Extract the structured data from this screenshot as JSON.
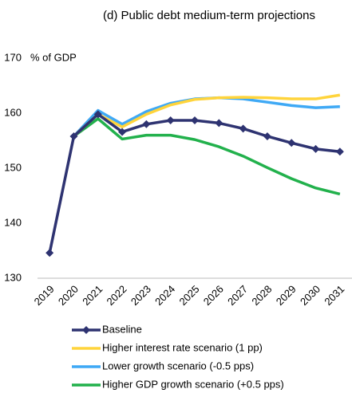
{
  "chart_data": {
    "type": "line",
    "title": "(d) Public debt medium-term projections",
    "y_label": "% of GDP",
    "categories": [
      "2019",
      "2020",
      "2021",
      "2022",
      "2023",
      "2024",
      "2025",
      "2026",
      "2027",
      "2028",
      "2029",
      "2030",
      "2031"
    ],
    "series": [
      {
        "name": "Baseline",
        "color": "#2e3371",
        "marker": "diamond",
        "values": [
          134.6,
          155.8,
          159.8,
          156.6,
          158.0,
          158.7,
          158.7,
          158.2,
          157.2,
          155.8,
          154.6,
          153.5,
          153.0
        ]
      },
      {
        "name": "Higher interest rate scenario (1 pp)",
        "color": "#ffd43b",
        "values": [
          null,
          155.8,
          159.8,
          157.5,
          159.8,
          161.5,
          162.5,
          162.8,
          162.9,
          162.8,
          162.6,
          162.6,
          163.3
        ]
      },
      {
        "name": "Lower growth scenario (-0.5 pps)",
        "color": "#3fa9f5",
        "values": [
          null,
          155.8,
          160.5,
          158.0,
          160.3,
          161.8,
          162.6,
          162.8,
          162.6,
          162.0,
          161.4,
          161.0,
          161.2
        ]
      },
      {
        "name": "Higher GDP growth scenario (+0.5 pps)",
        "color": "#22b14c",
        "values": [
          null,
          155.8,
          159.0,
          155.3,
          156.0,
          156.0,
          155.2,
          153.9,
          152.2,
          150.1,
          148.1,
          146.4,
          145.3
        ]
      }
    ],
    "ylim": [
      130,
      170
    ],
    "yticks": [
      130,
      140,
      150,
      160,
      170
    ],
    "grid": false
  }
}
